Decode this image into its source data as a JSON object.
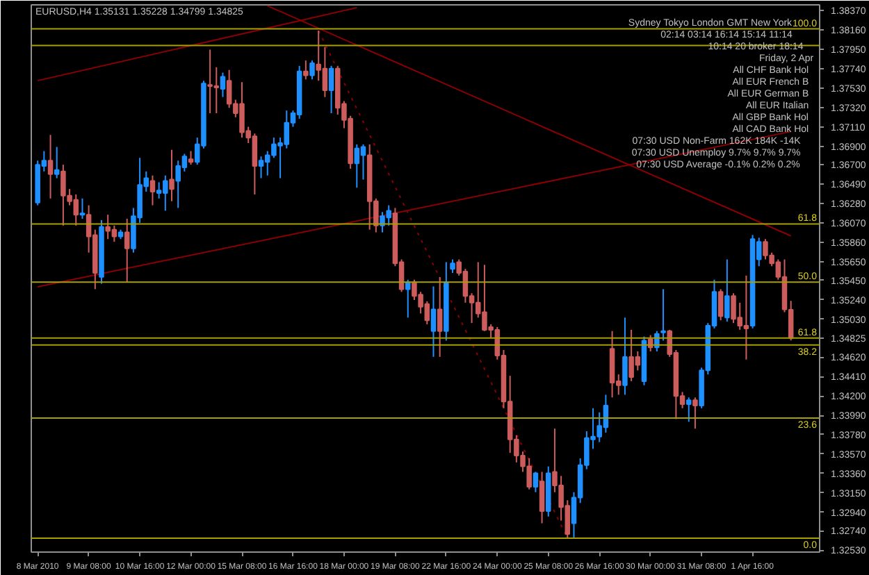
{
  "chart_data": {
    "type": "candlestick",
    "title": "EURUSD,H4 1.35131 1.35228 1.34799 1.34825",
    "categories": [
      "8 Mar 2010",
      null,
      null,
      null,
      null,
      null,
      null,
      null,
      "9 Mar 08:00",
      null,
      null,
      null,
      null,
      null,
      null,
      null,
      "10 Mar 16:00",
      null,
      null,
      null,
      null,
      null,
      null,
      null,
      "12 Mar 00:00",
      null,
      null,
      null,
      null,
      null,
      null,
      null,
      "15 Mar 08:00",
      null,
      null,
      null,
      null,
      null,
      null,
      null,
      "16 Mar 16:00",
      null,
      null,
      null,
      null,
      null,
      null,
      null,
      "18 Mar 00:00",
      null,
      null,
      null,
      null,
      null,
      null,
      null,
      "19 Mar 08:00",
      null,
      null,
      null,
      null,
      null,
      null,
      null,
      "22 Mar 16:00",
      null,
      null,
      null,
      null,
      null,
      null,
      null,
      "24 Mar 00:00",
      null,
      null,
      null,
      null,
      null,
      null,
      null,
      "25 Mar 08:00",
      null,
      null,
      null,
      null,
      null,
      null,
      null,
      "26 Mar 16:00",
      null,
      null,
      null,
      null,
      null,
      null,
      null,
      "30 Mar 00:00",
      null,
      null,
      null,
      null,
      null,
      null,
      null,
      "31 Mar 08:00",
      null,
      null,
      null,
      null,
      null,
      null,
      null,
      "1 Apr 16:00",
      null,
      null,
      null,
      null,
      null,
      null
    ],
    "ohlc": [
      [
        1.36291,
        1.36745,
        1.36262,
        1.36701
      ],
      [
        1.36687,
        1.36848,
        1.36628,
        1.36745
      ],
      [
        1.36745,
        1.37023,
        1.36335,
        1.36599
      ],
      [
        1.36599,
        1.36893,
        1.36555,
        1.36643
      ],
      [
        1.36628,
        1.36701,
        1.36042,
        1.36365
      ],
      [
        1.36365,
        1.36438,
        1.36262,
        1.36306
      ],
      [
        1.36321,
        1.36379,
        1.36042,
        1.3616
      ],
      [
        1.3616,
        1.36335,
        1.36116,
        1.36174
      ],
      [
        1.3616,
        1.36262,
        1.3575,
        1.35925
      ],
      [
        1.3594,
        1.35998,
        1.35354,
        1.3553
      ],
      [
        1.35486,
        1.36101,
        1.35413,
        1.36028
      ],
      [
        1.36028,
        1.3616,
        1.35896,
        1.35984
      ],
      [
        1.35998,
        1.36042,
        1.35867,
        1.35925
      ],
      [
        1.35925,
        1.35998,
        1.35896,
        1.35969
      ],
      [
        1.35969,
        1.36116,
        1.35428,
        1.35794
      ],
      [
        1.35794,
        1.36233,
        1.3575,
        1.36145
      ],
      [
        1.3613,
        1.36775,
        1.36072,
        1.36482
      ],
      [
        1.36467,
        1.36628,
        1.36409,
        1.36555
      ],
      [
        1.36526,
        1.36584,
        1.36262,
        1.36409
      ],
      [
        1.36394,
        1.36511,
        1.36335,
        1.36423
      ],
      [
        1.36394,
        1.36584,
        1.36203,
        1.36526
      ],
      [
        1.3654,
        1.36862,
        1.36306,
        1.36438
      ],
      [
        1.36526,
        1.36745,
        1.36233,
        1.36687
      ],
      [
        1.36672,
        1.36818,
        1.36628,
        1.3679
      ],
      [
        1.3676,
        1.36848,
        1.36701,
        1.36731
      ],
      [
        1.36731,
        1.36994,
        1.36701,
        1.36921
      ],
      [
        1.36906,
        1.37609,
        1.36877,
        1.3758
      ],
      [
        1.37565,
        1.37946,
        1.37258,
        1.37551
      ],
      [
        1.37551,
        1.37755,
        1.37258,
        1.37536
      ],
      [
        1.37521,
        1.37697,
        1.37433,
        1.37653
      ],
      [
        1.37609,
        1.37726,
        1.37316,
        1.3736
      ],
      [
        1.3736,
        1.37404,
        1.37214,
        1.37258
      ],
      [
        1.3736,
        1.37594,
        1.36994,
        1.37052
      ],
      [
        1.37067,
        1.37111,
        1.36935,
        1.36994
      ],
      [
        1.37008,
        1.37038,
        1.36379,
        1.36687
      ],
      [
        1.36687,
        1.3679,
        1.36555,
        1.36745
      ],
      [
        1.36731,
        1.36848,
        1.36584,
        1.36804
      ],
      [
        1.36804,
        1.36994,
        1.36775,
        1.36921
      ],
      [
        1.36906,
        1.36994,
        1.36555,
        1.36935
      ],
      [
        1.36921,
        1.37287,
        1.36877,
        1.37155
      ],
      [
        1.37155,
        1.37287,
        1.37111,
        1.37258
      ],
      [
        1.37243,
        1.3777,
        1.37199,
        1.37711
      ],
      [
        1.37711,
        1.37828,
        1.37624,
        1.37667
      ],
      [
        1.37667,
        1.37828,
        1.37624,
        1.37799
      ],
      [
        1.37785,
        1.38151,
        1.37609,
        1.37726
      ],
      [
        1.37741,
        1.37975,
        1.37433,
        1.37506
      ],
      [
        1.37506,
        1.3777,
        1.37258,
        1.37741
      ],
      [
        1.37741,
        1.3777,
        1.37243,
        1.37316
      ],
      [
        1.3736,
        1.37389,
        1.37096,
        1.37185
      ],
      [
        1.37199,
        1.37229,
        1.36657,
        1.36716
      ],
      [
        1.36716,
        1.36921,
        1.36452,
        1.36877
      ],
      [
        1.36804,
        1.36921,
        1.3654,
        1.36893
      ],
      [
        1.36804,
        1.36921,
        1.35998,
        1.36306
      ],
      [
        1.36306,
        1.36335,
        1.35969,
        1.36042
      ],
      [
        1.36042,
        1.36189,
        1.35969,
        1.36145
      ],
      [
        1.3613,
        1.36262,
        1.36042,
        1.36203
      ],
      [
        1.36174,
        1.36233,
        1.35603,
        1.35633
      ],
      [
        1.35647,
        1.35676,
        1.35325,
        1.35354
      ],
      [
        1.35354,
        1.35457,
        1.35047,
        1.35428
      ],
      [
        1.35428,
        1.35457,
        1.35237,
        1.35281
      ],
      [
        1.35296,
        1.35325,
        1.35091,
        1.35164
      ],
      [
        1.35193,
        1.35223,
        1.34974,
        1.35018
      ],
      [
        1.34901,
        1.35384,
        1.34622,
        1.35135
      ],
      [
        1.35135,
        1.35486,
        1.34622,
        1.34901
      ],
      [
        1.34901,
        1.35647,
        1.34798,
        1.35428
      ],
      [
        1.35574,
        1.35676,
        1.3553,
        1.35633
      ],
      [
        1.35647,
        1.35676,
        1.35501,
        1.3553
      ],
      [
        1.35545,
        1.35574,
        1.35208,
        1.35281
      ],
      [
        1.35281,
        1.3531,
        1.34988,
        1.35208
      ],
      [
        1.35208,
        1.35647,
        1.35047,
        1.35091
      ],
      [
        1.35105,
        1.35618,
        1.34901,
        1.34915
      ],
      [
        1.34944,
        1.34974,
        1.34827,
        1.34915
      ],
      [
        1.34915,
        1.34944,
        1.34593,
        1.34637
      ],
      [
        1.34637,
        1.34696,
        1.34066,
        1.34139
      ],
      [
        1.34139,
        1.34417,
        1.33583,
        1.33729
      ],
      [
        1.33729,
        1.33773,
        1.3348,
        1.33554
      ],
      [
        1.33554,
        1.33598,
        1.33378,
        1.33437
      ],
      [
        1.33437,
        1.33525,
        1.33188,
        1.33217
      ],
      [
        1.33217,
        1.33378,
        1.33158,
        1.33363
      ],
      [
        1.33275,
        1.33378,
        1.32822,
        1.32953
      ],
      [
        1.32953,
        1.33437,
        1.32895,
        1.33363
      ],
      [
        1.33378,
        1.33846,
        1.33158,
        1.33232
      ],
      [
        1.33232,
        1.33334,
        1.32851,
        1.32997
      ],
      [
        1.33012,
        1.33071,
        1.32661,
        1.32705
      ],
      [
        1.32822,
        1.33158,
        1.32661,
        1.331
      ],
      [
        1.331,
        1.33525,
        1.33041,
        1.33451
      ],
      [
        1.33451,
        1.33817,
        1.33407,
        1.33744
      ],
      [
        1.33729,
        1.34066,
        1.33627,
        1.33759
      ],
      [
        1.33759,
        1.34022,
        1.337,
        1.33876
      ],
      [
        1.33861,
        1.34212,
        1.33802,
        1.34095
      ],
      [
        1.3471,
        1.34901,
        1.34183,
        1.34344
      ],
      [
        1.34359,
        1.34432,
        1.34212,
        1.34315
      ],
      [
        1.34315,
        1.35047,
        1.34212,
        1.34622
      ],
      [
        1.34622,
        1.34915,
        1.34359,
        1.34403
      ],
      [
        1.34622,
        1.34681,
        1.34476,
        1.34535
      ],
      [
        1.34359,
        1.34842,
        1.34315,
        1.34798
      ],
      [
        1.34813,
        1.34857,
        1.34681,
        1.34725
      ],
      [
        1.34725,
        1.34901,
        1.34681,
        1.34871
      ],
      [
        1.34886,
        1.35354,
        1.34798,
        1.34901
      ],
      [
        1.34901,
        1.34915,
        1.34622,
        1.34652
      ],
      [
        1.34666,
        1.34696,
        1.33949,
        1.34198
      ],
      [
        1.34198,
        1.34242,
        1.34066,
        1.3411
      ],
      [
        1.3411,
        1.34183,
        1.3392,
        1.34154
      ],
      [
        1.34154,
        1.34183,
        1.33846,
        1.34095
      ],
      [
        1.34095,
        1.34505,
        1.34066,
        1.34476
      ],
      [
        1.34476,
        1.34988,
        1.34432,
        1.34959
      ],
      [
        1.34959,
        1.35457,
        1.3493,
        1.35325
      ],
      [
        1.35325,
        1.35354,
        1.35018,
        1.35062
      ],
      [
        1.35047,
        1.35676,
        1.35003,
        1.35281
      ],
      [
        1.35281,
        1.3531,
        1.34988,
        1.35032
      ],
      [
        1.35047,
        1.35208,
        1.34915,
        1.34959
      ],
      [
        1.34959,
        1.35501,
        1.34593,
        1.3493
      ],
      [
        1.34959,
        1.3594,
        1.3493,
        1.35896
      ],
      [
        1.35676,
        1.35911,
        1.35603,
        1.35867
      ],
      [
        1.35867,
        1.35896,
        1.35676,
        1.3572
      ],
      [
        1.3572,
        1.3575,
        1.35603,
        1.35633
      ],
      [
        1.35647,
        1.35676,
        1.35457,
        1.35486
      ],
      [
        1.35486,
        1.35676,
        1.35105,
        1.35135
      ],
      [
        1.35131,
        1.35228,
        1.34799,
        1.34825
      ]
    ],
    "colors": [
      "#1e90ff",
      "#1e90ff",
      "#cd5c5c",
      "#1e90ff",
      "#cd5c5c",
      "#cd5c5c",
      "#cd5c5c",
      "#1e90ff",
      "#cd5c5c",
      "#cd5c5c",
      "#1e90ff",
      "#cd5c5c",
      "#cd5c5c",
      "#1e90ff",
      "#cd5c5c",
      "#1e90ff",
      "#1e90ff",
      "#1e90ff",
      "#cd5c5c",
      "#1e90ff",
      "#1e90ff",
      "#cd5c5c",
      "#1e90ff",
      "#1e90ff",
      "#cd5c5c",
      "#1e90ff",
      "#1e90ff",
      "#cd5c5c",
      "#cd5c5c",
      "#1e90ff",
      "#cd5c5c",
      "#cd5c5c",
      "#cd5c5c",
      "#cd5c5c",
      "#cd5c5c",
      "#1e90ff",
      "#1e90ff",
      "#1e90ff",
      "#1e90ff",
      "#1e90ff",
      "#1e90ff",
      "#1e90ff",
      "#cd5c5c",
      "#1e90ff",
      "#cd5c5c",
      "#cd5c5c",
      "#1e90ff",
      "#cd5c5c",
      "#cd5c5c",
      "#cd5c5c",
      "#1e90ff",
      "#1e90ff",
      "#cd5c5c",
      "#cd5c5c",
      "#1e90ff",
      "#1e90ff",
      "#cd5c5c",
      "#cd5c5c",
      "#1e90ff",
      "#cd5c5c",
      "#cd5c5c",
      "#cd5c5c",
      "#1e90ff",
      "#cd5c5c",
      "#1e90ff",
      "#1e90ff",
      "#cd5c5c",
      "#cd5c5c",
      "#cd5c5c",
      "#cd5c5c",
      "#cd5c5c",
      "#cd5c5c",
      "#cd5c5c",
      "#cd5c5c",
      "#cd5c5c",
      "#cd5c5c",
      "#cd5c5c",
      "#cd5c5c",
      "#1e90ff",
      "#cd5c5c",
      "#1e90ff",
      "#cd5c5c",
      "#cd5c5c",
      "#cd5c5c",
      "#1e90ff",
      "#1e90ff",
      "#1e90ff",
      "#1e90ff",
      "#1e90ff",
      "#1e90ff",
      "#cd5c5c",
      "#cd5c5c",
      "#1e90ff",
      "#cd5c5c",
      "#cd5c5c",
      "#1e90ff",
      "#cd5c5c",
      "#1e90ff",
      "#1e90ff",
      "#cd5c5c",
      "#cd5c5c",
      "#cd5c5c",
      "#1e90ff",
      "#cd5c5c",
      "#1e90ff",
      "#1e90ff",
      "#1e90ff",
      "#cd5c5c",
      "#1e90ff",
      "#cd5c5c",
      "#cd5c5c",
      "#cd5c5c",
      "#1e90ff",
      "#1e90ff",
      "#cd5c5c",
      "#cd5c5c",
      "#cd5c5c",
      "#cd5c5c",
      "#cd5c5c"
    ],
    "ylim": [
      1.3251,
      1.3843
    ],
    "yticks": [
      {
        "value": 1.3837,
        "label": "1.38370"
      },
      {
        "value": 1.3816,
        "label": "1.38160"
      },
      {
        "value": 1.3795,
        "label": "1.37950"
      },
      {
        "value": 1.3774,
        "label": "1.37740"
      },
      {
        "value": 1.3753,
        "label": "1.37530"
      },
      {
        "value": 1.3732,
        "label": "1.37320"
      },
      {
        "value": 1.3711,
        "label": "1.37110"
      },
      {
        "value": 1.369,
        "label": "1.36900"
      },
      {
        "value": 1.367,
        "label": "1.36700"
      },
      {
        "value": 1.3649,
        "label": "1.36490"
      },
      {
        "value": 1.3628,
        "label": "1.36280"
      },
      {
        "value": 1.3607,
        "label": "1.36070"
      },
      {
        "value": 1.3586,
        "label": "1.35860"
      },
      {
        "value": 1.3565,
        "label": "1.35650"
      },
      {
        "value": 1.3545,
        "label": "1.35450"
      },
      {
        "value": 1.3524,
        "label": "1.35240"
      },
      {
        "value": 1.3503,
        "label": "1.35030"
      },
      {
        "value": 1.34825,
        "label": "1.34825"
      },
      {
        "value": 1.3462,
        "label": "1.34620"
      },
      {
        "value": 1.3441,
        "label": "1.34410"
      },
      {
        "value": 1.342,
        "label": "1.34200"
      },
      {
        "value": 1.3399,
        "label": "1.33990"
      },
      {
        "value": 1.3378,
        "label": "1.33780"
      },
      {
        "value": 1.3357,
        "label": "1.33570"
      },
      {
        "value": 1.3336,
        "label": "1.33360"
      },
      {
        "value": 1.3315,
        "label": "1.33150"
      },
      {
        "value": 1.3294,
        "label": "1.32940"
      },
      {
        "value": 1.3274,
        "label": "1.32740"
      },
      {
        "value": 1.3253,
        "label": "1.32530"
      }
    ],
    "grid": false,
    "ref_lines": [
      {
        "axis": "y",
        "value": 1.3817,
        "color": "#a89f00"
      },
      {
        "axis": "y",
        "value": 1.3799,
        "color": "#a89f00"
      },
      {
        "axis": "y",
        "value": 1.3606,
        "color": "#a89f00"
      },
      {
        "axis": "y",
        "value": 1.3543,
        "color": "#a89f00"
      },
      {
        "axis": "y",
        "value": 1.34825,
        "color": "#a89f00"
      },
      {
        "axis": "y",
        "value": 1.3475,
        "color": "#a89f00"
      },
      {
        "axis": "y",
        "value": 1.3396,
        "color": "#a89f00"
      },
      {
        "axis": "y",
        "value": 1.3266,
        "color": "#a89f00"
      }
    ],
    "series": [
      {
        "type": "line",
        "values": [
          1.3761,
          null,
          null,
          null,
          null,
          null,
          null,
          null,
          null,
          null,
          null,
          null,
          null,
          null,
          null,
          null,
          null,
          null,
          null,
          null,
          null,
          null,
          null,
          null,
          null,
          null,
          null,
          null,
          null,
          null,
          null,
          null,
          null,
          null,
          null,
          null,
          null,
          null,
          null,
          null,
          null,
          null,
          null,
          null,
          null,
          null,
          null,
          null,
          null,
          null,
          1.384,
          null,
          null,
          null,
          null,
          null,
          null,
          null,
          null,
          null,
          null,
          null,
          null,
          null,
          null,
          null,
          null,
          null,
          null,
          null,
          null,
          null,
          null,
          null,
          null,
          null,
          null,
          null,
          null,
          null,
          null,
          null,
          null,
          null,
          null,
          null,
          null,
          null,
          null,
          null,
          null,
          null,
          null,
          null,
          null,
          null,
          null,
          null,
          null,
          null,
          null,
          null,
          null,
          null,
          null,
          null,
          null,
          null,
          null,
          null,
          null,
          null,
          null,
          null,
          null,
          null,
          null,
          null,
          null
        ],
        "color": "#8b0000",
        "line_style": "solid"
      },
      {
        "type": "line",
        "values": [
          1.3538,
          null,
          null,
          null,
          null,
          null,
          null,
          null,
          null,
          null,
          null,
          null,
          null,
          null,
          null,
          null,
          null,
          null,
          null,
          null,
          null,
          null,
          null,
          null,
          null,
          null,
          null,
          null,
          null,
          null,
          null,
          null,
          null,
          null,
          null,
          null,
          null,
          null,
          null,
          null,
          null,
          null,
          null,
          null,
          null,
          null,
          null,
          null,
          null,
          null,
          null,
          null,
          null,
          null,
          null,
          null,
          null,
          null,
          null,
          null,
          null,
          null,
          null,
          null,
          null,
          null,
          null,
          null,
          null,
          null,
          null,
          null,
          null,
          null,
          null,
          null,
          null,
          null,
          null,
          null,
          null,
          null,
          null,
          null,
          null,
          null,
          null,
          null,
          null,
          null,
          null,
          null,
          null,
          null,
          null,
          null,
          null,
          null,
          null,
          null,
          null,
          null,
          null,
          null,
          null,
          null,
          null,
          null,
          null,
          null,
          null,
          null,
          null,
          null,
          null,
          null,
          null,
          null,
          1.3706
        ],
        "color": "#8b0000",
        "line_style": "solid"
      },
      {
        "type": "line",
        "values": [
          null,
          null,
          null,
          null,
          null,
          null,
          null,
          null,
          null,
          null,
          null,
          null,
          null,
          null,
          null,
          null,
          null,
          null,
          null,
          null,
          null,
          null,
          null,
          null,
          null,
          null,
          null,
          null,
          null,
          null,
          null,
          null,
          null,
          null,
          null,
          null,
          1.3842,
          null,
          null,
          null,
          null,
          null,
          null,
          null,
          null,
          null,
          null,
          null,
          null,
          null,
          null,
          null,
          null,
          null,
          null,
          null,
          null,
          null,
          null,
          null,
          null,
          null,
          null,
          null,
          null,
          null,
          null,
          null,
          null,
          null,
          null,
          null,
          null,
          null,
          null,
          null,
          null,
          null,
          null,
          null,
          null,
          null,
          null,
          null,
          null,
          null,
          null,
          null,
          null,
          null,
          null,
          null,
          null,
          null,
          null,
          null,
          null,
          null,
          null,
          null,
          null,
          null,
          null,
          null,
          null,
          null,
          null,
          null,
          null,
          null,
          null,
          null,
          null,
          null,
          null,
          null,
          null,
          null,
          1.3593
        ],
        "color": "#8b0000",
        "line_style": "solid"
      },
      {
        "type": "line",
        "values": [
          null,
          null,
          null,
          null,
          null,
          null,
          null,
          null,
          null,
          null,
          null,
          null,
          null,
          null,
          null,
          null,
          null,
          null,
          null,
          null,
          null,
          null,
          null,
          null,
          null,
          null,
          null,
          null,
          null,
          null,
          null,
          null,
          null,
          null,
          null,
          null,
          null,
          null,
          null,
          null,
          null,
          null,
          null,
          null,
          1.3815,
          null,
          null,
          null,
          null,
          null,
          null,
          null,
          null,
          null,
          null,
          null,
          null,
          null,
          null,
          null,
          null,
          null,
          null,
          null,
          null,
          null,
          null,
          null,
          null,
          null,
          null,
          null,
          null,
          null,
          null,
          null,
          null,
          null,
          null,
          null,
          null,
          null,
          null,
          1.3266,
          null,
          null,
          null,
          null,
          null,
          null,
          null,
          null,
          null,
          null,
          null,
          null,
          null,
          null,
          null,
          null,
          null,
          null,
          null,
          null,
          null,
          null,
          null,
          null,
          null,
          null,
          null,
          null,
          null,
          null,
          null,
          null,
          null,
          null,
          null
        ],
        "color": "#8b0000",
        "line_style": "dotted"
      }
    ],
    "annotations": [
      "Sydney   Tokyo   London   GMT   New York",
      "02:14   03:14   16:14   15:14   11:14",
      "10:14   20   broker 18:14",
      "Friday, 2 Apr",
      "All  CHF  Bank Hol",
      "All  EUR  French B",
      "All  EUR  German B",
      "All  EUR  Italian",
      "All  GBP  Bank Hol",
      "All  CAD  Bank Hol",
      "07:30  USD  Non-Farm  162K  184K  -14K",
      "07:30  USD  Unemploy  9.7%  9.7%  9.7%",
      "07:30  USD  Average  -0.1%  0.2%  0.2%",
      {
        "text": "100.0",
        "y": 1.3817
      },
      {
        "text": "61.8",
        "y": 1.3606
      },
      {
        "text": "50.0",
        "y": 1.3543
      },
      {
        "text": "61.8",
        "y": 1.34825
      },
      {
        "text": "38.2",
        "y": 1.3475
      },
      {
        "text": "23.6",
        "y": 1.3396
      },
      {
        "text": "0.0",
        "y": 1.3266
      }
    ]
  }
}
